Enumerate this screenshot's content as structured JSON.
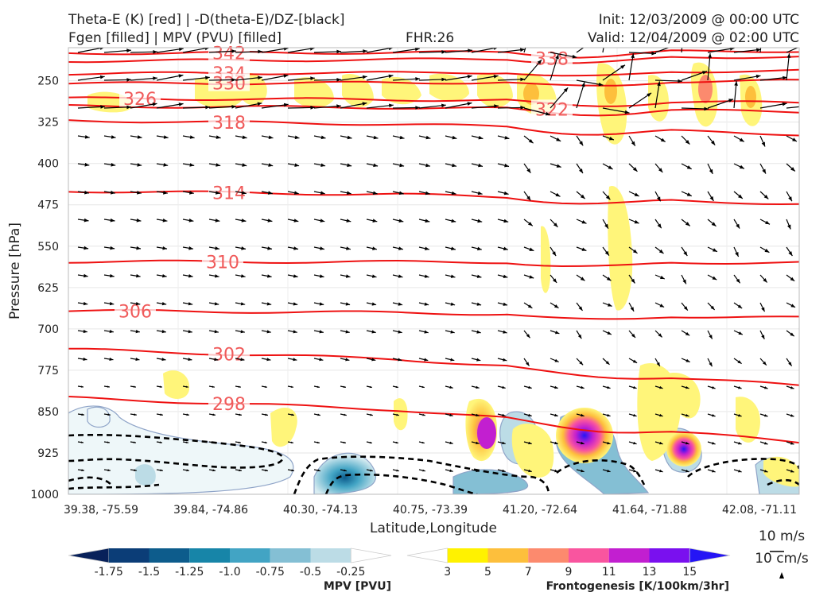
{
  "header": {
    "title_left_1": "Theta-E (K) [red] | -D(theta-E)/DZ-[black]",
    "title_left_2": "Fgen [filled] | MPV (PVU) [filled]",
    "fhr": "FHR:26",
    "init": "Init: 12/03/2009 @ 00:00 UTC",
    "valid": "Valid: 12/04/2009 @ 02:00 UTC"
  },
  "chart_data": {
    "type": "cross-section",
    "xlabel": "Latitude,Longitude",
    "ylabel": "Pressure [hPa]",
    "x_ticks": [
      "39.38, -75.59",
      "39.84, -74.86",
      "40.30, -74.13",
      "40.75, -73.39",
      "41.20, -72.64",
      "41.64, -71.88",
      "42.08, -71.11"
    ],
    "y_ticks": [
      250,
      325,
      400,
      475,
      550,
      625,
      700,
      775,
      850,
      925,
      1000
    ],
    "ylim": [
      1000,
      190
    ],
    "grid": true,
    "theta_e_contours": [
      {
        "label": "342",
        "pressure_start": 200,
        "pressure_end": 196
      },
      {
        "label": "338",
        "pressure_start": 214,
        "pressure_end": 206
      },
      {
        "label": "334",
        "pressure_start": 237,
        "pressure_end": 232
      },
      {
        "label": "330",
        "pressure_start": 255,
        "pressure_end": 250
      },
      {
        "label": "326",
        "pressure_start": 282,
        "pressure_end": 290
      },
      {
        "label": "322",
        "pressure_start": 296,
        "pressure_end": 306
      },
      {
        "label": "318",
        "pressure_start": 322,
        "pressure_end": 347
      },
      {
        "label": "314",
        "pressure_start": 450,
        "pressure_end": 473
      },
      {
        "label": "310",
        "pressure_start": 578,
        "pressure_end": 580
      },
      {
        "label": "306",
        "pressure_start": 667,
        "pressure_end": 680
      },
      {
        "label": "302",
        "pressure_start": 737,
        "pressure_end": 803
      },
      {
        "label": "298",
        "pressure_start": 825,
        "pressure_end": 905
      }
    ],
    "mpv_colorbar": {
      "label": "MPV [PVU]",
      "ticks": [
        "-1.75",
        "-1.5",
        "-1.25",
        "-1.0",
        "-0.75",
        "-0.5",
        "-0.25"
      ],
      "colors": [
        "#08215a",
        "#0b3d77",
        "#0d5c8c",
        "#1785a8",
        "#42a4c4",
        "#84bfd4",
        "#bcdce6",
        "#ffffff"
      ]
    },
    "fgen_colorbar": {
      "label": "Frontogenesis [K/100km/3hr]",
      "ticks": [
        "3",
        "5",
        "7",
        "9",
        "11",
        "13",
        "15"
      ],
      "colors": [
        "#ffffff",
        "#fff200",
        "#fdbf3c",
        "#fc8a6e",
        "#f9559f",
        "#c21fd0",
        "#7a10ef",
        "#2515f5"
      ]
    },
    "wind_key": {
      "horizontal": "10 m/s",
      "vertical": "10 cm/s"
    }
  }
}
